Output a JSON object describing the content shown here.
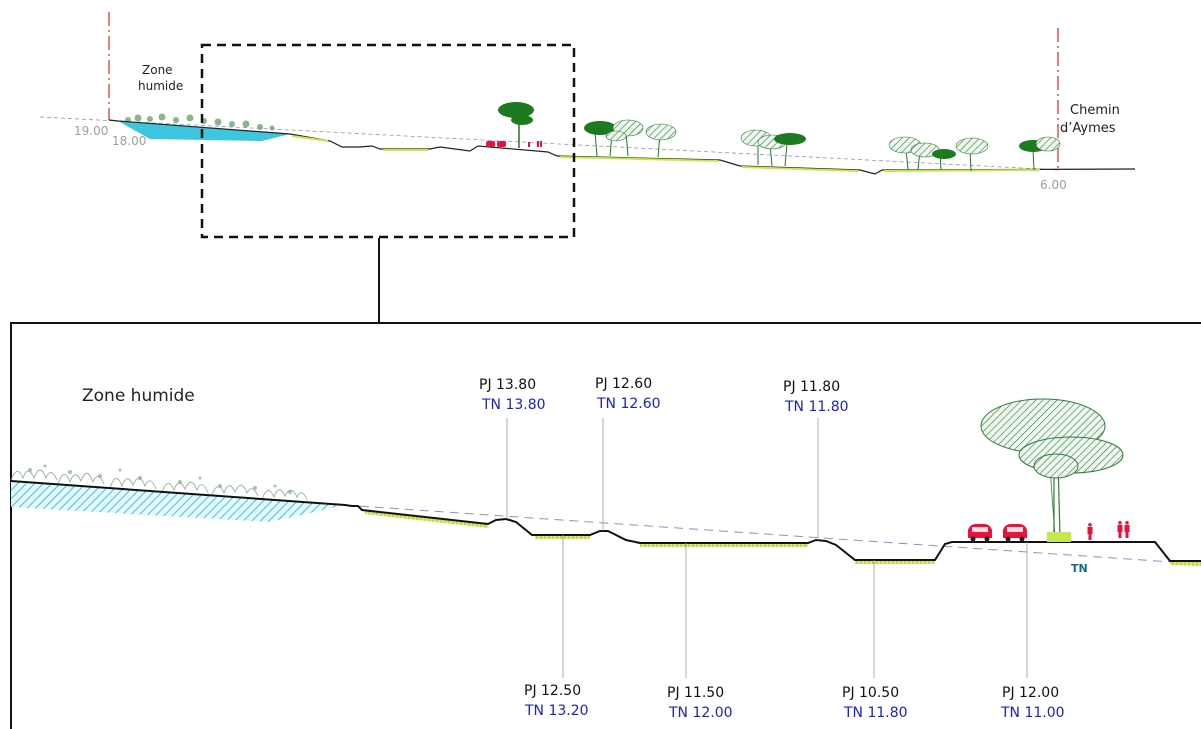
{
  "overview": {
    "zone_label_line1": "Zone",
    "zone_label_line2": "humide",
    "chemin_line1": "Chemin",
    "chemin_line2": "d’Aymes",
    "elev_left_1": "19.00",
    "elev_left_2": "18.00",
    "elev_right": "6.00"
  },
  "detail": {
    "zone_label": "Zone humide",
    "tn_marker": "TN",
    "callouts_top": [
      {
        "pj": "PJ  13.80",
        "tn": "TN 13.80"
      },
      {
        "pj": "PJ  12.60",
        "tn": "TN 12.60"
      },
      {
        "pj": "PJ  11.80",
        "tn": "TN 11.80"
      }
    ],
    "callouts_bottom": [
      {
        "pj": "PJ  12.50",
        "tn": "TN 13.20"
      },
      {
        "pj": "PJ  11.50",
        "tn": "TN 12.00"
      },
      {
        "pj": "PJ  10.50",
        "tn": "TN 11.80"
      },
      {
        "pj": "PJ  12.00",
        "tn": "TN 11.00"
      }
    ]
  },
  "colors": {
    "water": "#3cc6e0",
    "grass": "#c6e84a",
    "tree_dark": "#1e7a1e",
    "tree_hatch": "#2f7d3a",
    "car": "#e8133c",
    "datum_red": "#d42a2a",
    "tn_line": "#8f8fd6",
    "tn_text": "#1b22c9"
  }
}
